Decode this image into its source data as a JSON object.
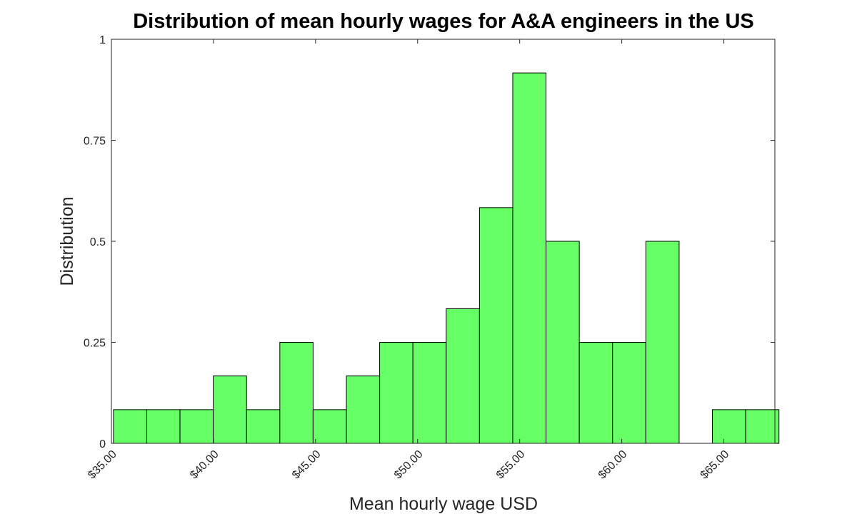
{
  "chart_data": {
    "type": "bar",
    "title": "Distribution of mean hourly wages for A&A engineers in the US",
    "xlabel": "Mean hourly wage USD",
    "ylabel": "Distribution",
    "ylim": [
      0,
      1
    ],
    "xlim": [
      35,
      67.5
    ],
    "y_ticks": [
      0,
      0.25,
      0.5,
      0.75,
      1
    ],
    "y_tick_labels": [
      "0",
      "0.25",
      "0.5",
      "0.75",
      "1"
    ],
    "x_ticks": [
      35,
      40,
      45,
      50,
      55,
      60,
      65
    ],
    "x_tick_labels": [
      "$35.00",
      "$40.00",
      "$45.00",
      "$50.00",
      "$55.00",
      "$60.00",
      "$65.00"
    ],
    "bin_edges": [
      35.1,
      36.73,
      38.36,
      39.99,
      41.62,
      43.25,
      44.88,
      46.51,
      48.14,
      49.77,
      51.4,
      53.03,
      54.66,
      56.29,
      57.92,
      59.55,
      61.18,
      62.81,
      64.44,
      66.07,
      67.7
    ],
    "values": [
      0.0833,
      0.0833,
      0.0833,
      0.1667,
      0.0833,
      0.25,
      0.0833,
      0.1667,
      0.25,
      0.25,
      0.3333,
      0.5833,
      0.9167,
      0.5,
      0.25,
      0.25,
      0.5,
      0,
      0.0833,
      0.0833
    ],
    "grid": false,
    "bar_color": "#66ff66",
    "edge_color": "#000000"
  }
}
